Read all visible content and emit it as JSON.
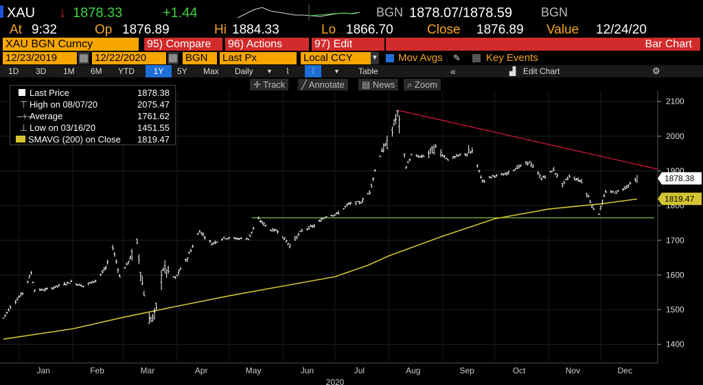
{
  "header": {
    "ticker": "XAU",
    "arrow": "↓",
    "last": "1878.33",
    "change": "+1.44",
    "bid_src": "BGN",
    "bid_ask": "1878.07/1878.59",
    "ask_src": "BGN"
  },
  "quote": {
    "at_label": "At",
    "time": "9:32",
    "op_label": "Op",
    "open": "1876.89",
    "hi_label": "Hi",
    "high": "1884.33",
    "lo_label": "Lo",
    "low": "1866.70",
    "close_label": "Close",
    "close": "1876.89",
    "value_label": "Value",
    "date": "12/24/20"
  },
  "toolbar": {
    "security": "XAU BGN Curncy",
    "compare": "95) Compare",
    "actions": "96) Actions",
    "edit": "97) Edit",
    "bar_chart": "Bar Chart",
    "start_date": "12/23/2019",
    "end_date": "12/22/2020",
    "source": "BGN",
    "field": "Last Px",
    "currency": "Local CCY",
    "mov_avgs": "Mov Avgs",
    "key_events": "Key Events",
    "periods": [
      "1D",
      "3D",
      "1M",
      "6M",
      "YTD",
      "1Y",
      "5Y",
      "Max"
    ],
    "active_period": "1Y",
    "frequency": "Daily",
    "table": "Table",
    "collapse": "«",
    "edit_chart": "Edit Chart",
    "track": "Track",
    "annotate": "Annotate",
    "news": "News",
    "zoom": "Zoom"
  },
  "legend": [
    {
      "label": "Last Price",
      "value": "1878.38"
    },
    {
      "label": "High on 08/07/20",
      "value": "2075.47"
    },
    {
      "label": "Average",
      "value": "1761.62"
    },
    {
      "label": "Low on 03/16/20",
      "value": "1451.55"
    },
    {
      "label": "SMAVG (200)  on Close",
      "value": "1819.47"
    }
  ],
  "colors": {
    "price": "#ffffff",
    "sma": "#d4c431",
    "trendline": "#d4163c",
    "support": "#7fbf3f",
    "up": "#3fd23f",
    "down": "#e52929",
    "label_orange": "#f5a623",
    "header_bar": "#f7a600",
    "active": "#1d6fd6"
  },
  "chart_data": {
    "type": "bar",
    "title": "",
    "xlabel": "2020",
    "ylabel": "",
    "x_ticks": [
      "Jan",
      "Feb",
      "Mar",
      "Apr",
      "May",
      "Jun",
      "Jul",
      "Aug",
      "Sep",
      "Oct",
      "Nov",
      "Dec"
    ],
    "y_ticks": [
      1400,
      1500,
      1600,
      1700,
      1800,
      1900,
      2000,
      2100
    ],
    "ylim": [
      1350,
      2130
    ],
    "x_range": [
      "2019-12-23",
      "2020-12-22"
    ],
    "last_price_label": "1878.38",
    "sma_label": "1819.47",
    "series": [
      {
        "name": "Last Price",
        "style": "ohlc",
        "points": [
          [
            "2019-12-23",
            1476
          ],
          [
            "2019-12-27",
            1508
          ],
          [
            "2020-01-03",
            1548
          ],
          [
            "2020-01-08",
            1606
          ],
          [
            "2020-01-10",
            1556
          ],
          [
            "2020-01-17",
            1558
          ],
          [
            "2020-01-24",
            1569
          ],
          [
            "2020-01-31",
            1580
          ],
          [
            "2020-02-07",
            1568
          ],
          [
            "2020-02-14",
            1584
          ],
          [
            "2020-02-20",
            1620
          ],
          [
            "2020-02-24",
            1680
          ],
          [
            "2020-02-28",
            1597
          ],
          [
            "2020-03-04",
            1638
          ],
          [
            "2020-03-09",
            1690
          ],
          [
            "2020-03-12",
            1575
          ],
          [
            "2020-03-16",
            1470
          ],
          [
            "2020-03-19",
            1480
          ],
          [
            "2020-03-24",
            1620
          ],
          [
            "2020-03-31",
            1590
          ],
          [
            "2020-04-07",
            1650
          ],
          [
            "2020-04-14",
            1727
          ],
          [
            "2020-04-21",
            1690
          ],
          [
            "2020-04-28",
            1707
          ],
          [
            "2020-05-05",
            1705
          ],
          [
            "2020-05-12",
            1705
          ],
          [
            "2020-05-18",
            1760
          ],
          [
            "2020-05-25",
            1730
          ],
          [
            "2020-05-29",
            1728
          ],
          [
            "2020-06-05",
            1685
          ],
          [
            "2020-06-12",
            1728
          ],
          [
            "2020-06-19",
            1742
          ],
          [
            "2020-06-26",
            1770
          ],
          [
            "2020-07-02",
            1775
          ],
          [
            "2020-07-09",
            1805
          ],
          [
            "2020-07-16",
            1810
          ],
          [
            "2020-07-21",
            1840
          ],
          [
            "2020-07-24",
            1900
          ],
          [
            "2020-07-28",
            1960
          ],
          [
            "2020-07-31",
            1975
          ],
          [
            "2020-08-06",
            2065
          ],
          [
            "2020-08-11",
            1912
          ],
          [
            "2020-08-14",
            1945
          ],
          [
            "2020-08-20",
            1940
          ],
          [
            "2020-08-28",
            1965
          ],
          [
            "2020-09-04",
            1933
          ],
          [
            "2020-09-11",
            1945
          ],
          [
            "2020-09-18",
            1955
          ],
          [
            "2020-09-24",
            1870
          ],
          [
            "2020-09-30",
            1885
          ],
          [
            "2020-10-07",
            1890
          ],
          [
            "2020-10-14",
            1910
          ],
          [
            "2020-10-21",
            1925
          ],
          [
            "2020-10-28",
            1878
          ],
          [
            "2020-11-04",
            1903
          ],
          [
            "2020-11-09",
            1860
          ],
          [
            "2020-11-13",
            1885
          ],
          [
            "2020-11-20",
            1870
          ],
          [
            "2020-11-27",
            1790
          ],
          [
            "2020-11-30",
            1778
          ],
          [
            "2020-12-04",
            1840
          ],
          [
            "2020-12-10",
            1838
          ],
          [
            "2020-12-16",
            1855
          ],
          [
            "2020-12-22",
            1878
          ]
        ]
      },
      {
        "name": "SMAVG (200) on Close",
        "style": "line",
        "points": [
          [
            "2019-12-23",
            1415
          ],
          [
            "2020-02-01",
            1445
          ],
          [
            "2020-03-01",
            1478
          ],
          [
            "2020-04-01",
            1510
          ],
          [
            "2020-05-01",
            1540
          ],
          [
            "2020-06-01",
            1568
          ],
          [
            "2020-07-01",
            1595
          ],
          [
            "2020-07-20",
            1628
          ],
          [
            "2020-08-01",
            1655
          ],
          [
            "2020-09-01",
            1712
          ],
          [
            "2020-10-01",
            1762
          ],
          [
            "2020-11-01",
            1790
          ],
          [
            "2020-12-01",
            1805
          ],
          [
            "2020-12-22",
            1819
          ]
        ]
      },
      {
        "name": "",
        "style": "trendline",
        "points": [
          [
            "2020-08-06",
            2075
          ],
          [
            "2020-12-22",
            1905
          ]
        ]
      },
      {
        "name": "",
        "style": "support",
        "points": [
          [
            "2020-05-14",
            1765
          ],
          [
            "2020-12-22",
            1765
          ]
        ]
      }
    ]
  }
}
